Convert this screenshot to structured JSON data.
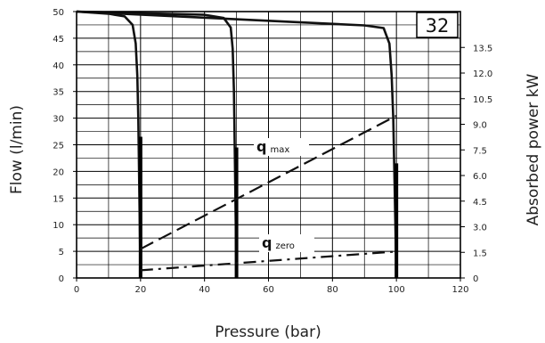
{
  "chart_data": {
    "type": "line",
    "xlabel": "Pressure (bar)",
    "ylabel": "Flow (l/min)",
    "y2label": "Absorbed power kW",
    "badge": "32",
    "x_ticks": [
      "0",
      "20",
      "40",
      "60",
      "80",
      "100",
      "120"
    ],
    "y_ticks": [
      "0",
      "5",
      "10",
      "15",
      "20",
      "25",
      "30",
      "35",
      "40",
      "45",
      "50"
    ],
    "y2_ticks": [
      "0",
      "1.5",
      "3.0",
      "4.5",
      "6.0",
      "7.5",
      "9.0",
      "10.5",
      "12.0",
      "13.5"
    ],
    "xlim": [
      0,
      120
    ],
    "ylim": [
      0,
      50
    ],
    "y2lim": [
      0,
      15.6
    ],
    "grid": true,
    "flow_curves": [
      {
        "points": [
          [
            0,
            50
          ],
          [
            10,
            49.6
          ],
          [
            15,
            49.1
          ],
          [
            17.5,
            47.5
          ],
          [
            18.5,
            44
          ],
          [
            19,
            38
          ],
          [
            19.3,
            30
          ],
          [
            20,
            0
          ]
        ]
      },
      {
        "points": [
          [
            0,
            50
          ],
          [
            40,
            49.4
          ],
          [
            46,
            48.8
          ],
          [
            48.2,
            47
          ],
          [
            48.8,
            43
          ],
          [
            49.2,
            35
          ],
          [
            50,
            0
          ]
        ]
      },
      {
        "points": [
          [
            0,
            50
          ],
          [
            90,
            47.4
          ],
          [
            96,
            46.9
          ],
          [
            97.8,
            44
          ],
          [
            98.5,
            38
          ],
          [
            99,
            30
          ],
          [
            100,
            0
          ]
        ]
      }
    ],
    "setting_lines": [
      {
        "x": 20,
        "y_from": 0,
        "y_to": 26.5
      },
      {
        "x": 50,
        "y_from": 0,
        "y_to": 24.5
      },
      {
        "x": 100,
        "y_from": 0,
        "y_to": 21.5
      }
    ],
    "series": [
      {
        "name": "q",
        "sub": "max",
        "points": [
          [
            20,
            1.7
          ],
          [
            100,
            9.5
          ]
        ]
      },
      {
        "name": "q",
        "sub": "zero",
        "points": [
          [
            20,
            0.45
          ],
          [
            100,
            1.55
          ]
        ]
      }
    ]
  }
}
